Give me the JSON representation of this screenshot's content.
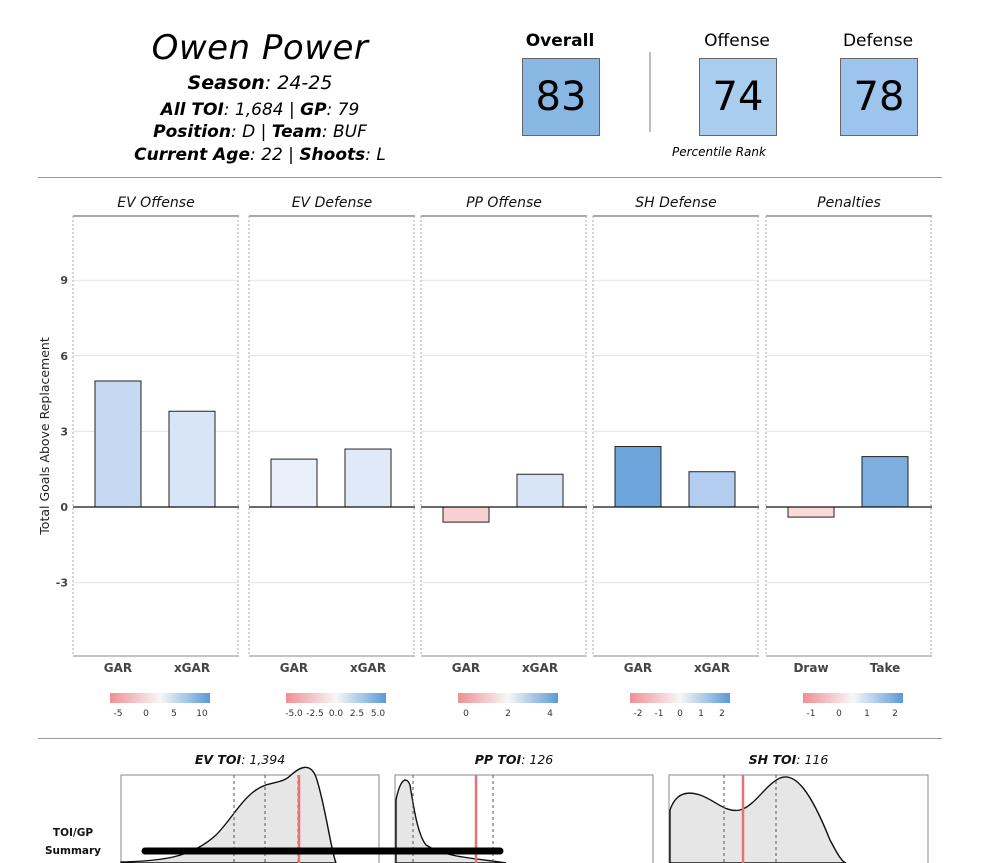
{
  "player": {
    "name": "Owen Power",
    "season_label": "Season",
    "season_value": ": 24-25",
    "toi_label": "All TOI",
    "toi_value": ": 1,684 | ",
    "gp_label": "GP",
    "gp_value": ": 79",
    "position_label": "Position",
    "position_value": ": D | ",
    "team_label": "Team",
    "team_value": ": BUF",
    "age_label": "Current Age",
    "age_value": ": 22 | ",
    "shoots_label": "Shoots",
    "shoots_value": ": L"
  },
  "ratings": {
    "overall_label": "Overall",
    "overall_value": "83",
    "overall_color": "#89b7e3",
    "offense_label": "Offense",
    "offense_value": "74",
    "offense_color": "#a9cdee",
    "defense_label": "Defense",
    "defense_value": "78",
    "defense_color": "#9cc4ec",
    "percentile_label": "Percentile Rank"
  },
  "chart_data": [
    {
      "type": "bar",
      "ylabel": "Total Goals Above Replacement",
      "yticks": [
        9,
        6,
        3,
        0,
        -3
      ],
      "ylim": [
        -6,
        11.5
      ],
      "grid": true,
      "panels": [
        {
          "title": "EV Offense",
          "categories": [
            "GAR",
            "xGAR"
          ],
          "values": [
            5.0,
            3.8
          ],
          "colors": [
            "#c6d9f3",
            "#d8e5f6"
          ],
          "legend_ticks": [
            "-5",
            "0",
            "5",
            "10"
          ]
        },
        {
          "title": "EV Defense",
          "categories": [
            "GAR",
            "xGAR"
          ],
          "values": [
            1.9,
            2.3
          ],
          "colors": [
            "#e9f0fa",
            "#e0e9f7"
          ],
          "legend_ticks": [
            "-5.0",
            "-2.5",
            "0.0",
            "2.5",
            "5.0"
          ]
        },
        {
          "title": "PP Offense",
          "categories": [
            "GAR",
            "xGAR"
          ],
          "values": [
            -0.6,
            1.3
          ],
          "colors": [
            "#f8d0d2",
            "#d8e5f6"
          ],
          "legend_ticks": [
            "0",
            "2",
            "4"
          ]
        },
        {
          "title": "SH Defense",
          "categories": [
            "GAR",
            "xGAR"
          ],
          "values": [
            2.4,
            1.4
          ],
          "colors": [
            "#6da5dd",
            "#b2cdf0"
          ],
          "legend_ticks": [
            "-2",
            "-1",
            "0",
            "1",
            "2"
          ]
        },
        {
          "title": "Penalties",
          "categories": [
            "Draw",
            "Take"
          ],
          "values": [
            -0.4,
            2.0
          ],
          "colors": [
            "#f9d9da",
            "#7eaee0"
          ],
          "legend_ticks": [
            "-1",
            "0",
            "1",
            "2"
          ]
        }
      ]
    },
    {
      "type": "area",
      "ylabel": "TOI/GP Summary",
      "panels": [
        {
          "title_label": "EV TOI",
          "title_value": ": 1,394"
        },
        {
          "title_label": "PP TOI",
          "title_value": ": 126"
        },
        {
          "title_label": "SH TOI",
          "title_value": ": 116"
        }
      ]
    }
  ]
}
